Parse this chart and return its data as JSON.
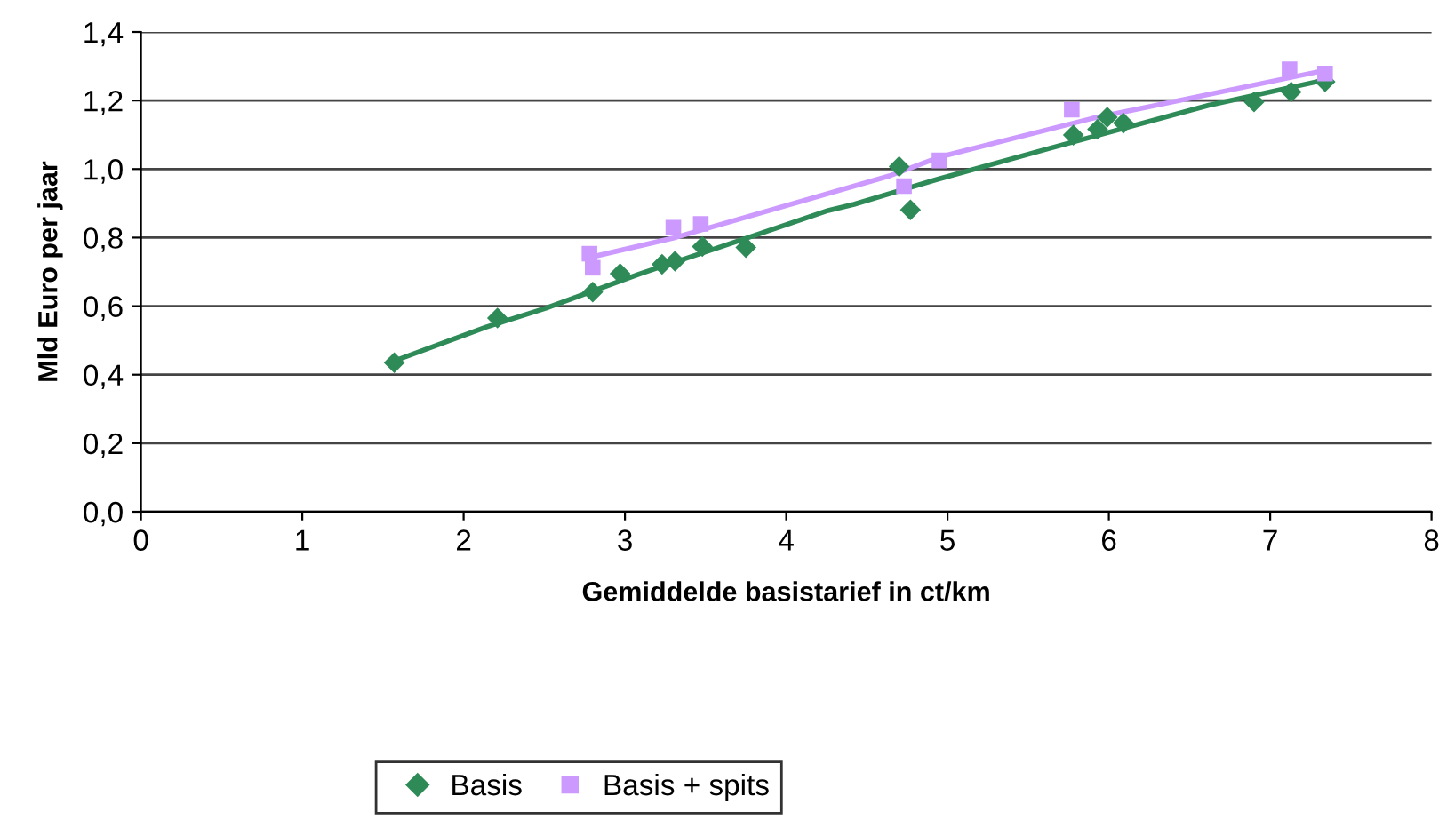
{
  "chart_data": {
    "type": "scatter",
    "xlabel": "Gemiddelde basistarief in ct/km",
    "ylabel": "Mld Euro per jaar",
    "xlim": [
      0,
      8
    ],
    "xticks": [
      0,
      1,
      2,
      3,
      4,
      5,
      6,
      7,
      8
    ],
    "ylim": [
      0,
      1.4
    ],
    "yticks": [
      {
        "value": 0,
        "label": "0,0"
      },
      {
        "value": 0.2,
        "label": "0,2"
      },
      {
        "value": 0.4,
        "label": "0,4"
      },
      {
        "value": 0.6,
        "label": "0,6"
      },
      {
        "value": 0.8,
        "label": "0,8"
      },
      {
        "value": 1.0,
        "label": "1,0"
      },
      {
        "value": 1.2,
        "label": "1,2"
      },
      {
        "value": 1.4,
        "label": "1,4"
      }
    ],
    "grid": "y",
    "legend": "bottom",
    "series": [
      {
        "name": "Basis",
        "marker": "diamond",
        "color": "#2e8b57",
        "x": [
          1.57,
          2.21,
          2.8,
          2.97,
          3.23,
          3.31,
          3.48,
          3.75,
          4.7,
          4.77,
          5.78,
          5.93,
          5.99,
          6.09,
          6.9,
          7.13,
          7.34
        ],
        "values": [
          0.435,
          0.565,
          0.641,
          0.695,
          0.722,
          0.731,
          0.774,
          0.771,
          1.007,
          0.881,
          1.099,
          1.116,
          1.151,
          1.134,
          1.196,
          1.225,
          1.255
        ]
      },
      {
        "name": "Basis + spits",
        "marker": "square",
        "color": "#cc99ff",
        "x": [
          2.78,
          2.8,
          3.3,
          3.47,
          4.73,
          4.95,
          5.77,
          7.12,
          7.34
        ],
        "values": [
          0.753,
          0.712,
          0.829,
          0.84,
          0.95,
          1.025,
          1.173,
          1.291,
          1.279
        ]
      },
      {
        "type": "line",
        "marker": "none",
        "line_style": "solid",
        "color": "#2e8b57",
        "x": [
          1.57,
          2.14,
          2.51,
          3.09,
          3.72,
          4.26,
          4.42,
          4.93,
          5.63,
          6.62,
          7.34
        ],
        "values": [
          0.44,
          0.539,
          0.594,
          0.694,
          0.793,
          0.879,
          0.897,
          0.969,
          1.06,
          1.186,
          1.26
        ]
      },
      {
        "type": "line",
        "marker": "none",
        "line_style": "solid",
        "color": "#cc99ff",
        "x": [
          2.78,
          3.31,
          4.64,
          4.95,
          5.89,
          7.34
        ],
        "values": [
          0.742,
          0.8,
          0.98,
          1.035,
          1.147,
          1.288
        ]
      }
    ]
  }
}
